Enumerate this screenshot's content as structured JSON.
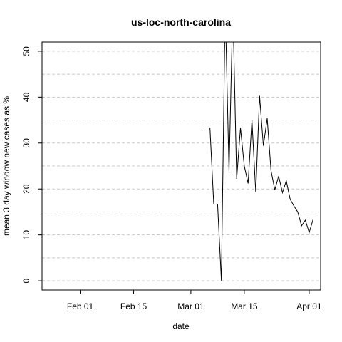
{
  "chart_data": {
    "type": "line",
    "title": "us-loc-north-carolina",
    "xlabel": "date",
    "ylabel": "mean  3  day window new cases as %",
    "x_ticks": [
      "2020-02-01",
      "2020-02-15",
      "2020-03-01",
      "2020-03-15",
      "2020-04-01"
    ],
    "x_tick_labels": [
      "Feb 01",
      "Feb 15",
      "Mar 01",
      "Mar 15",
      "Apr 01"
    ],
    "xlim": [
      "2020-01-22",
      "2020-04-04"
    ],
    "y_ticks": [
      0,
      10,
      20,
      30,
      40,
      50
    ],
    "ylim": [
      -2,
      52
    ],
    "grid": "horizontal-dashed",
    "series": [
      {
        "color": "#000000",
        "points": [
          [
            "2020-03-04",
            33.3
          ],
          [
            "2020-03-05",
            33.3
          ],
          [
            "2020-03-06",
            33.3
          ],
          [
            "2020-03-07",
            16.7
          ],
          [
            "2020-03-08",
            16.7
          ],
          [
            "2020-03-09",
            0.0
          ],
          [
            "2020-03-10",
            60.0
          ],
          [
            "2020-03-11",
            23.8
          ],
          [
            "2020-03-12",
            60.0
          ],
          [
            "2020-03-13",
            22.2
          ],
          [
            "2020-03-14",
            33.3
          ],
          [
            "2020-03-15",
            25.0
          ],
          [
            "2020-03-16",
            21.2
          ],
          [
            "2020-03-17",
            35.0
          ],
          [
            "2020-03-18",
            19.3
          ],
          [
            "2020-03-19",
            40.3
          ],
          [
            "2020-03-20",
            29.4
          ],
          [
            "2020-03-21",
            35.4
          ],
          [
            "2020-03-22",
            24.0
          ],
          [
            "2020-03-23",
            19.8
          ],
          [
            "2020-03-24",
            22.8
          ],
          [
            "2020-03-25",
            19.2
          ],
          [
            "2020-03-26",
            21.8
          ],
          [
            "2020-03-27",
            17.8
          ],
          [
            "2020-03-28",
            16.3
          ],
          [
            "2020-03-29",
            15.0
          ],
          [
            "2020-03-30",
            12.0
          ],
          [
            "2020-03-31",
            13.2
          ],
          [
            "2020-04-01",
            10.5
          ],
          [
            "2020-04-02",
            13.3
          ]
        ]
      }
    ]
  }
}
